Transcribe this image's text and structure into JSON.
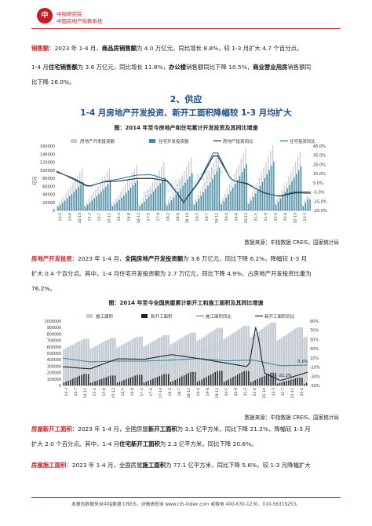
{
  "header": {
    "logo_text": "中",
    "org_name": "中指研究院",
    "org_sub": "中国房地产指数系统"
  },
  "paragraphs": {
    "p1_label": "销售额",
    "p1_a": "：2023 年 1-4 月，",
    "p1_b": "商品房销售额",
    "p1_c": "为 4.0 万亿元，同比增长 8.8%，较 1-3 月扩大 4.7 个百分点。",
    "p2_a": "1-4 月",
    "p2_b": "住宅销售额",
    "p2_c": "为 3.6 万亿元，同比增长 11.8%，",
    "p2_d": "办公楼",
    "p2_e": "销售额同比下降 10.5%，",
    "p2_f": "商业营业用房",
    "p2_g": "销售额同",
    "p2_h": "比下降 16.0%。",
    "p3_label": "房地产开发投资",
    "p3_a": "：2023 年 1-4 月，",
    "p3_b": "全国房地产开发投资额",
    "p3_c": "为 3.6 万亿元，同比下降 6.2%，降幅较 1-3 月",
    "p3_d": "扩大 0.4 个百分点。其中，1-4 月住宅开发投资额为 2.7 万亿元，同比下降 4.9%，占房地产开发投资比重为",
    "p3_e": "76.2%。",
    "p4_label": "房屋新开工面积",
    "p4_a": "：2023 年 1-4 月，全国房屋",
    "p4_b": "新开工面积",
    "p4_c": "为 3.1 亿平方米，同比下降 21.2%，降幅较 1-3 月",
    "p4_d": "扩大 2.0 个百分点。其中，1-4 月",
    "p4_e": "住宅新开工面积",
    "p4_f": "为 2.3 亿平方米，同比下降 20.6%。",
    "p5_label": "房屋施工面积",
    "p5_a": "：2023 年 1-4 月，全国房屋",
    "p5_b": "施工面积",
    "p5_c": "为 77.1 亿平方米，同比下降 5.6%，较 1-3 月降幅扩大"
  },
  "section": {
    "title": "2、供应",
    "subtitle": "1-4 月房地产开发投资、新开工面积降幅较 1-3 月均扩大"
  },
  "chart1_title": "图：2014 年至今房地产和住宅累计开发投资及其同比增速",
  "chart2_title": "图：2014 年至今全国房屋累计新开工和施工面积及其同比增速",
  "source_text": "数据来源：中指数据 CREIS，国家统计局",
  "watermark": "中指数据 CREIS",
  "footer": "本报告数据来自中指数据 CREIS，详情请查询 www.cih-index.com 或致电 400-630-1230、010-56319253。",
  "chart_data": [
    {
      "type": "bar",
      "title": "图：2014 年至今房地产和住宅累计开发投资及其同比增速",
      "ylabel": "亿元",
      "ylim": [
        0,
        160000
      ],
      "y_ticks": [
        "160000",
        "140000",
        "120000",
        "100000",
        "80000",
        "60000",
        "40000",
        "20000",
        "0"
      ],
      "y2_ticks": [
        "45.0%",
        "35.0%",
        "25.0%",
        "15.0%",
        "5.0%",
        "-5.0%",
        "-15.0%",
        "-25.0%"
      ],
      "y2lim": [
        -25,
        45
      ],
      "x_ticks": [
        "14-2",
        "14-6",
        "14-10",
        "15-3",
        "15-7",
        "15-11",
        "16-4",
        "16-8",
        "16-12",
        "17-5",
        "17-9",
        "18-2",
        "18-6",
        "18-10",
        "19-3",
        "19-7",
        "19-11",
        "20-4",
        "20-8",
        "20-12",
        "21-5",
        "21-9",
        "22-2",
        "22-6",
        "22-10",
        "23-3"
      ],
      "legend": [
        "房地产开发投资额",
        "住宅开发投资额",
        "房地产投资同比",
        "住宅投资同比"
      ],
      "colors": {
        "invest": "#c5ccd3",
        "resi": "#3c8fa6",
        "invest_yoy": "#222222",
        "resi_yoy": "#2a6f9a"
      },
      "year_ends": [
        95036,
        95979,
        102581,
        109799,
        120264,
        132194,
        141443,
        147602,
        132895
      ],
      "resi_ratio": [
        0.675,
        0.673,
        0.671,
        0.68,
        0.705,
        0.733,
        0.739,
        0.751,
        0.753
      ],
      "ytd_2023": [
        13669,
        25974,
        35514
      ],
      "yoy_invest": [
        16.8,
        10.5,
        1.0,
        6.2,
        7.0,
        9.7,
        9.9,
        7.0,
        -16.3,
        7.0,
        38.3,
        8.0,
        3.7,
        -5.4,
        -9.9,
        -5.8,
        -6.2
      ],
      "yoy_resi": [
        18.0,
        9.2,
        0.4,
        6.4,
        9.4,
        13.4,
        13.9,
        7.6,
        -15.6,
        8.0,
        42.0,
        7.8,
        4.5,
        -6.0,
        -9.5,
        -4.5,
        -4.9
      ]
    },
    {
      "type": "bar",
      "title": "图：2014 年至今全国房屋累计新开工和施工面积及其同比增速",
      "ylabel": "",
      "ylim": [
        0,
        1000000
      ],
      "y_ticks": [
        "1000000",
        "900000",
        "800000",
        "700000",
        "600000",
        "500000",
        "400000",
        "300000",
        "200000",
        "100000",
        "0"
      ],
      "y2_ticks": [
        "90%",
        "70%",
        "50%",
        "30%",
        "10%",
        "-10%",
        "-30%",
        "-50%"
      ],
      "y2lim": [
        -50,
        90
      ],
      "x_ticks": [
        "14-3",
        "14-7",
        "14-11",
        "15-4",
        "15-8",
        "15-12",
        "16-5",
        "16-9",
        "17-2",
        "17-6",
        "17-10",
        "18-3",
        "18-7",
        "18-11",
        "19-4",
        "19-8",
        "19-12",
        "20-5",
        "20-9",
        "21-2",
        "21-6",
        "21-10",
        "22-3",
        "22-7",
        "22-11",
        "23-4"
      ],
      "legend": [
        "施工面积",
        "新开工面积",
        "施工面积同比",
        "新开工面积同比"
      ],
      "colors": {
        "construction": "#c5ccd3",
        "newstart": "#222222",
        "cons_yoy": "#3c8fa6",
        "new_yoy": "#222222"
      },
      "annotations": [
        "-5.6%",
        "-21.2%"
      ],
      "year_end_construction": [
        726482,
        735693,
        758975,
        781484,
        822300,
        893821,
        926759,
        975387,
        904999
      ],
      "year_end_newstart": [
        179592,
        154454,
        166928,
        178654,
        209342,
        227154,
        224433,
        198895,
        120587
      ],
      "yoy_new": [
        -9.2,
        -14.0,
        8.1,
        7.0,
        17.2,
        8.5,
        -1.2,
        -11.4,
        -39.4,
        -21.2
      ],
      "yoy_cons": [
        9.2,
        1.3,
        3.2,
        3.0,
        5.2,
        8.7,
        3.7,
        5.2,
        -7.2,
        -5.6
      ]
    }
  ]
}
